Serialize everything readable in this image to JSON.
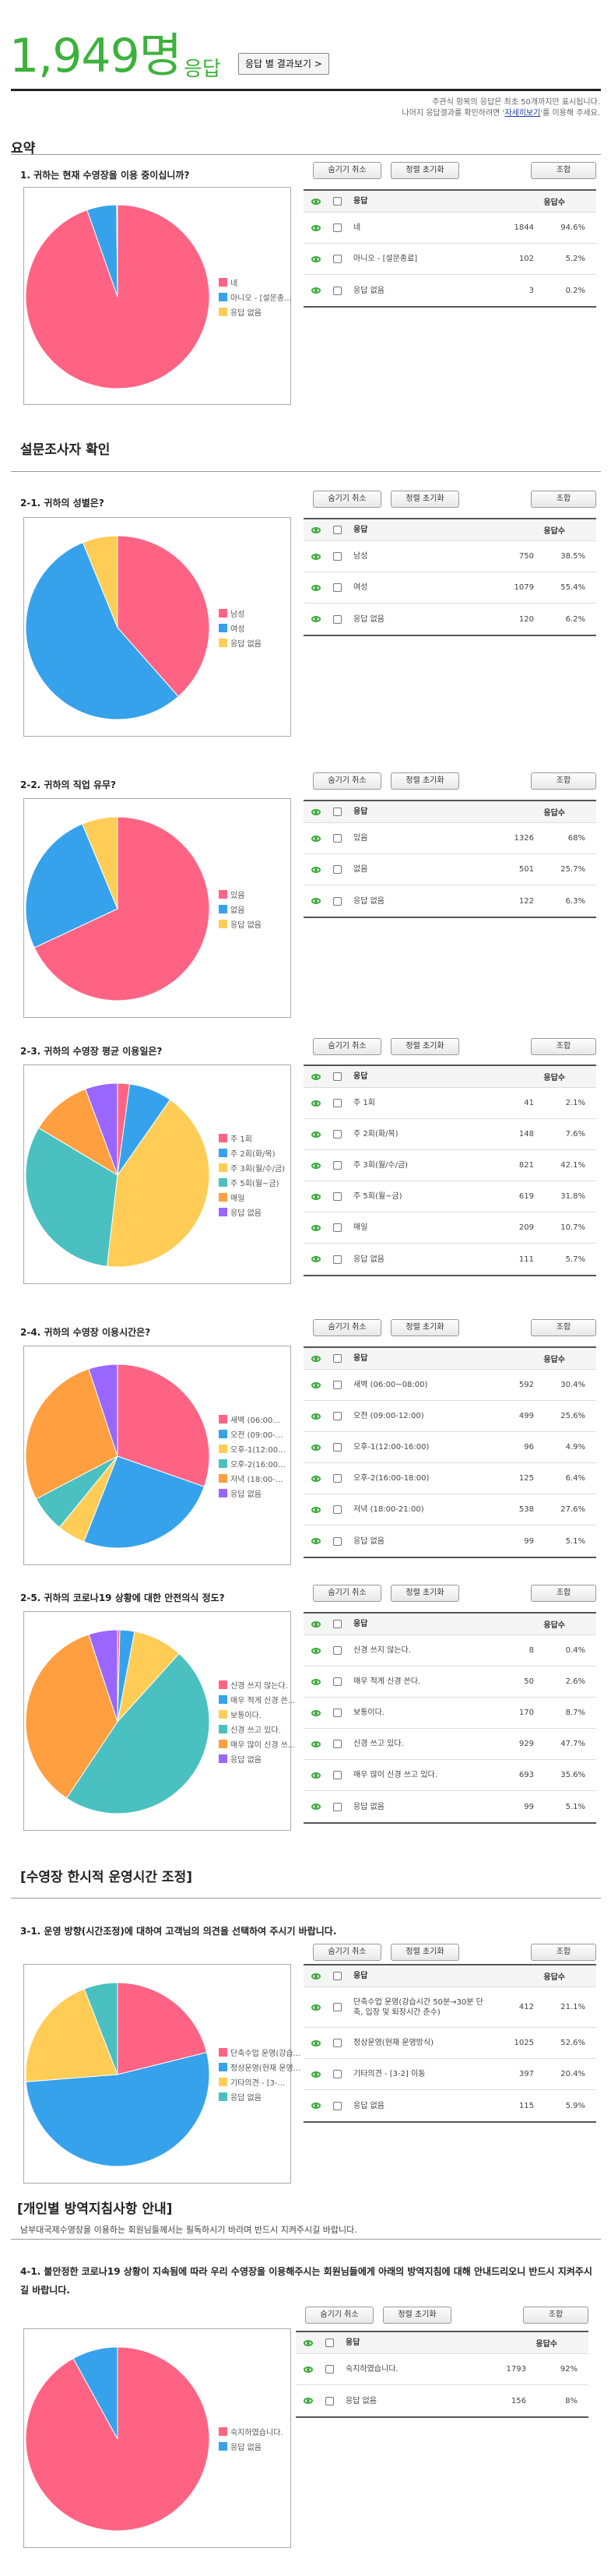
{
  "header": {
    "count": "1,949",
    "count_suffix": "명",
    "word": "응답",
    "button": "응답 별 결과보기 >",
    "notice_line1": "주관식 항목의 응답은 최초 50개까지만 표시됩니다.",
    "notice_line2_pre": "나머지 응답결과를 확인하려면 '",
    "notice_link": "자세히보기",
    "notice_line2_post": "'를 이용해 주세요."
  },
  "buttons": {
    "hide_cancel": "숨기기 취소",
    "filter_reset": "정렬 초기화",
    "view": "조합"
  },
  "table_headers": {
    "answer": "응답",
    "count": "응답수"
  },
  "sections": {
    "summary": "요약",
    "confirm": "설문조사자 확인",
    "temp_ops": "[수영장 한시적 운영시간 조정]",
    "personal": "[개인별 방역지침사항 안내]",
    "personal_desc": "남부대국제수영장을 이용하는 회원님들께서는 필독하시기 바라며 반드시 지켜주시길 바랍니다."
  },
  "colors": {
    "accent_green": "#3cb23c",
    "pink": "#ff6384",
    "blue": "#36a2eb",
    "yellow": "#ffcd56",
    "teal": "#4bc0c0",
    "orange": "#ff9f40",
    "purple": "#9966ff"
  },
  "questions": [
    {
      "title": "1. 귀하는 현재 수영장을 이용 중이십니까?",
      "chart_data": {
        "type": "pie",
        "categories": [
          "네",
          "아니오 - [설문종료]",
          "응답 없음"
        ],
        "values": [
          1844,
          102,
          3
        ],
        "colors": [
          "#ff6384",
          "#36a2eb",
          "#ffcd56"
        ]
      },
      "legend": [
        "네",
        "아니오 - [설문종...",
        "응답 없음"
      ],
      "rows": [
        {
          "answer": "네",
          "count": "1844",
          "pct": "94.6%"
        },
        {
          "answer": "아니오 - [설문종료]",
          "count": "102",
          "pct": "5.2%"
        },
        {
          "answer": "응답 없음",
          "count": "3",
          "pct": "0.2%"
        }
      ]
    },
    {
      "title": "2-1. 귀하의 성별은?",
      "chart_data": {
        "type": "pie",
        "categories": [
          "남성",
          "여성",
          "응답 없음"
        ],
        "values": [
          750,
          1079,
          120
        ],
        "colors": [
          "#ff6384",
          "#36a2eb",
          "#ffcd56"
        ]
      },
      "legend": [
        "남성",
        "여성",
        "응답 없음"
      ],
      "rows": [
        {
          "answer": "남성",
          "count": "750",
          "pct": "38.5%"
        },
        {
          "answer": "여성",
          "count": "1079",
          "pct": "55.4%"
        },
        {
          "answer": "응답 없음",
          "count": "120",
          "pct": "6.2%"
        }
      ]
    },
    {
      "title": "2-2. 귀하의 직업 유무?",
      "chart_data": {
        "type": "pie",
        "categories": [
          "있음",
          "없음",
          "응답 없음"
        ],
        "values": [
          1326,
          501,
          122
        ],
        "colors": [
          "#ff6384",
          "#36a2eb",
          "#ffcd56"
        ]
      },
      "legend": [
        "있음",
        "없음",
        "응답 없음"
      ],
      "rows": [
        {
          "answer": "있음",
          "count": "1326",
          "pct": "68%"
        },
        {
          "answer": "없음",
          "count": "501",
          "pct": "25.7%"
        },
        {
          "answer": "응답 없음",
          "count": "122",
          "pct": "6.3%"
        }
      ]
    },
    {
      "title": "2-3. 귀하의 수영장 평균 이용일은?",
      "chart_data": {
        "type": "pie",
        "categories": [
          "주 1회",
          "주 2회(화/목)",
          "주 3회(월/수/금)",
          "주 5회(월~금)",
          "매일",
          "응답 없음"
        ],
        "values": [
          41,
          148,
          821,
          619,
          209,
          111
        ],
        "colors": [
          "#ff6384",
          "#36a2eb",
          "#ffcd56",
          "#4bc0c0",
          "#ff9f40",
          "#9966ff"
        ]
      },
      "legend": [
        "주 1회",
        "주 2회(화/목)",
        "주 3회(월/수/금)",
        "주 5회(월~금)",
        "매일",
        "응답 없음"
      ],
      "rows": [
        {
          "answer": "주 1회",
          "count": "41",
          "pct": "2.1%"
        },
        {
          "answer": "주 2회(화/목)",
          "count": "148",
          "pct": "7.6%"
        },
        {
          "answer": "주 3회(월/수/금)",
          "count": "821",
          "pct": "42.1%"
        },
        {
          "answer": "주 5회(월~금)",
          "count": "619",
          "pct": "31.8%"
        },
        {
          "answer": "매일",
          "count": "209",
          "pct": "10.7%"
        },
        {
          "answer": "응답 없음",
          "count": "111",
          "pct": "5.7%"
        }
      ]
    },
    {
      "title": "2-4. 귀하의 수영장 이용시간은?",
      "chart_data": {
        "type": "pie",
        "categories": [
          "새벽 (06:00~08:00)",
          "오전 (09:00-12:00)",
          "오후-1(12:00-16:00)",
          "오후-2(16:00-18:00)",
          "저녁 (18:00-21:00)",
          "응답 없음"
        ],
        "values": [
          592,
          499,
          96,
          125,
          538,
          99
        ],
        "colors": [
          "#ff6384",
          "#36a2eb",
          "#ffcd56",
          "#4bc0c0",
          "#ff9f40",
          "#9966ff"
        ]
      },
      "legend": [
        "새벽 (06:00...",
        "오전 (09:00-...",
        "오후-1(12:00...",
        "오후-2(16:00...",
        "저녁 (18:00-...",
        "응답 없음"
      ],
      "rows": [
        {
          "answer": "새벽 (06:00~08:00)",
          "count": "592",
          "pct": "30.4%"
        },
        {
          "answer": "오전 (09:00-12:00)",
          "count": "499",
          "pct": "25.6%"
        },
        {
          "answer": "오후-1(12:00-16:00)",
          "count": "96",
          "pct": "4.9%"
        },
        {
          "answer": "오후-2(16:00-18:00)",
          "count": "125",
          "pct": "6.4%"
        },
        {
          "answer": "저녁 (18:00-21:00)",
          "count": "538",
          "pct": "27.6%"
        },
        {
          "answer": "응답 없음",
          "count": "99",
          "pct": "5.1%"
        }
      ]
    },
    {
      "title": "2-5. 귀하의 코로나19 상황에 대한 안전의식 정도?",
      "chart_data": {
        "type": "pie",
        "categories": [
          "신경 쓰지 않는다.",
          "매우 적게 신경 쓴다.",
          "보통이다.",
          "신경 쓰고 있다.",
          "매우 많이 신경 쓰고 있다.",
          "응답 없음"
        ],
        "values": [
          8,
          50,
          170,
          929,
          693,
          99
        ],
        "colors": [
          "#ff6384",
          "#36a2eb",
          "#ffcd56",
          "#4bc0c0",
          "#ff9f40",
          "#9966ff"
        ]
      },
      "legend": [
        "신경 쓰지 않는다.",
        "매우 적게 신경 쓴...",
        "보통이다.",
        "신경 쓰고 있다.",
        "매우 많이 신경 쓰...",
        "응답 없음"
      ],
      "rows": [
        {
          "answer": "신경 쓰지 않는다.",
          "count": "8",
          "pct": "0.4%"
        },
        {
          "answer": "매우 적게 신경 쓴다.",
          "count": "50",
          "pct": "2.6%"
        },
        {
          "answer": "보통이다.",
          "count": "170",
          "pct": "8.7%"
        },
        {
          "answer": "신경 쓰고 있다.",
          "count": "929",
          "pct": "47.7%"
        },
        {
          "answer": "매우 많이 신경 쓰고 있다.",
          "count": "693",
          "pct": "35.6%"
        },
        {
          "answer": "응답 없음",
          "count": "99",
          "pct": "5.1%"
        }
      ]
    },
    {
      "title": "3-1. 운영 방향(시간조정)에 대하여 고객님의 의견을 선택하여 주시기 바랍니다.",
      "chart_data": {
        "type": "pie",
        "categories": [
          "단축수업 운영(강습시간 50분→30분 단축, 입장 및 퇴장시간 준수)",
          "정상운영(현재 운영방식)",
          "기타의견 - [3-2] 이동",
          "응답 없음"
        ],
        "values": [
          412,
          1025,
          397,
          115
        ],
        "colors": [
          "#ff6384",
          "#36a2eb",
          "#ffcd56",
          "#4bc0c0"
        ]
      },
      "legend": [
        "단축수업 운영(강습...",
        "정상운영(현재 운영...",
        "기타의견 - [3-...",
        "응답 없음"
      ],
      "rows": [
        {
          "answer": "단축수업 운영(강습시간 50분→30분 단축, 입장 및 퇴장시간 준수)",
          "count": "412",
          "pct": "21.1%"
        },
        {
          "answer": "정상운영(현재 운영방식)",
          "count": "1025",
          "pct": "52.6%"
        },
        {
          "answer": "기타의견 - [3-2] 이동",
          "count": "397",
          "pct": "20.4%"
        },
        {
          "answer": "응답 없음",
          "count": "115",
          "pct": "5.9%"
        }
      ]
    },
    {
      "title": "4-1. 불안정한 코로나19 상황이 지속됨에 따라 우리 수영장을 이용해주시는 회원님들에게 아래의 방역지침에 대해 안내드리오니 반드시 지켜주시길 바랍니다.",
      "chart_data": {
        "type": "pie",
        "categories": [
          "숙지하였습니다.",
          "응답 없음"
        ],
        "values": [
          1793,
          156
        ],
        "colors": [
          "#ff6384",
          "#36a2eb"
        ]
      },
      "legend": [
        "숙지하였습니다.",
        "응답 없음"
      ],
      "rows": [
        {
          "answer": "숙지하였습니다.",
          "count": "1793",
          "pct": "92%"
        },
        {
          "answer": "응답 없음",
          "count": "156",
          "pct": "8%"
        }
      ]
    }
  ]
}
